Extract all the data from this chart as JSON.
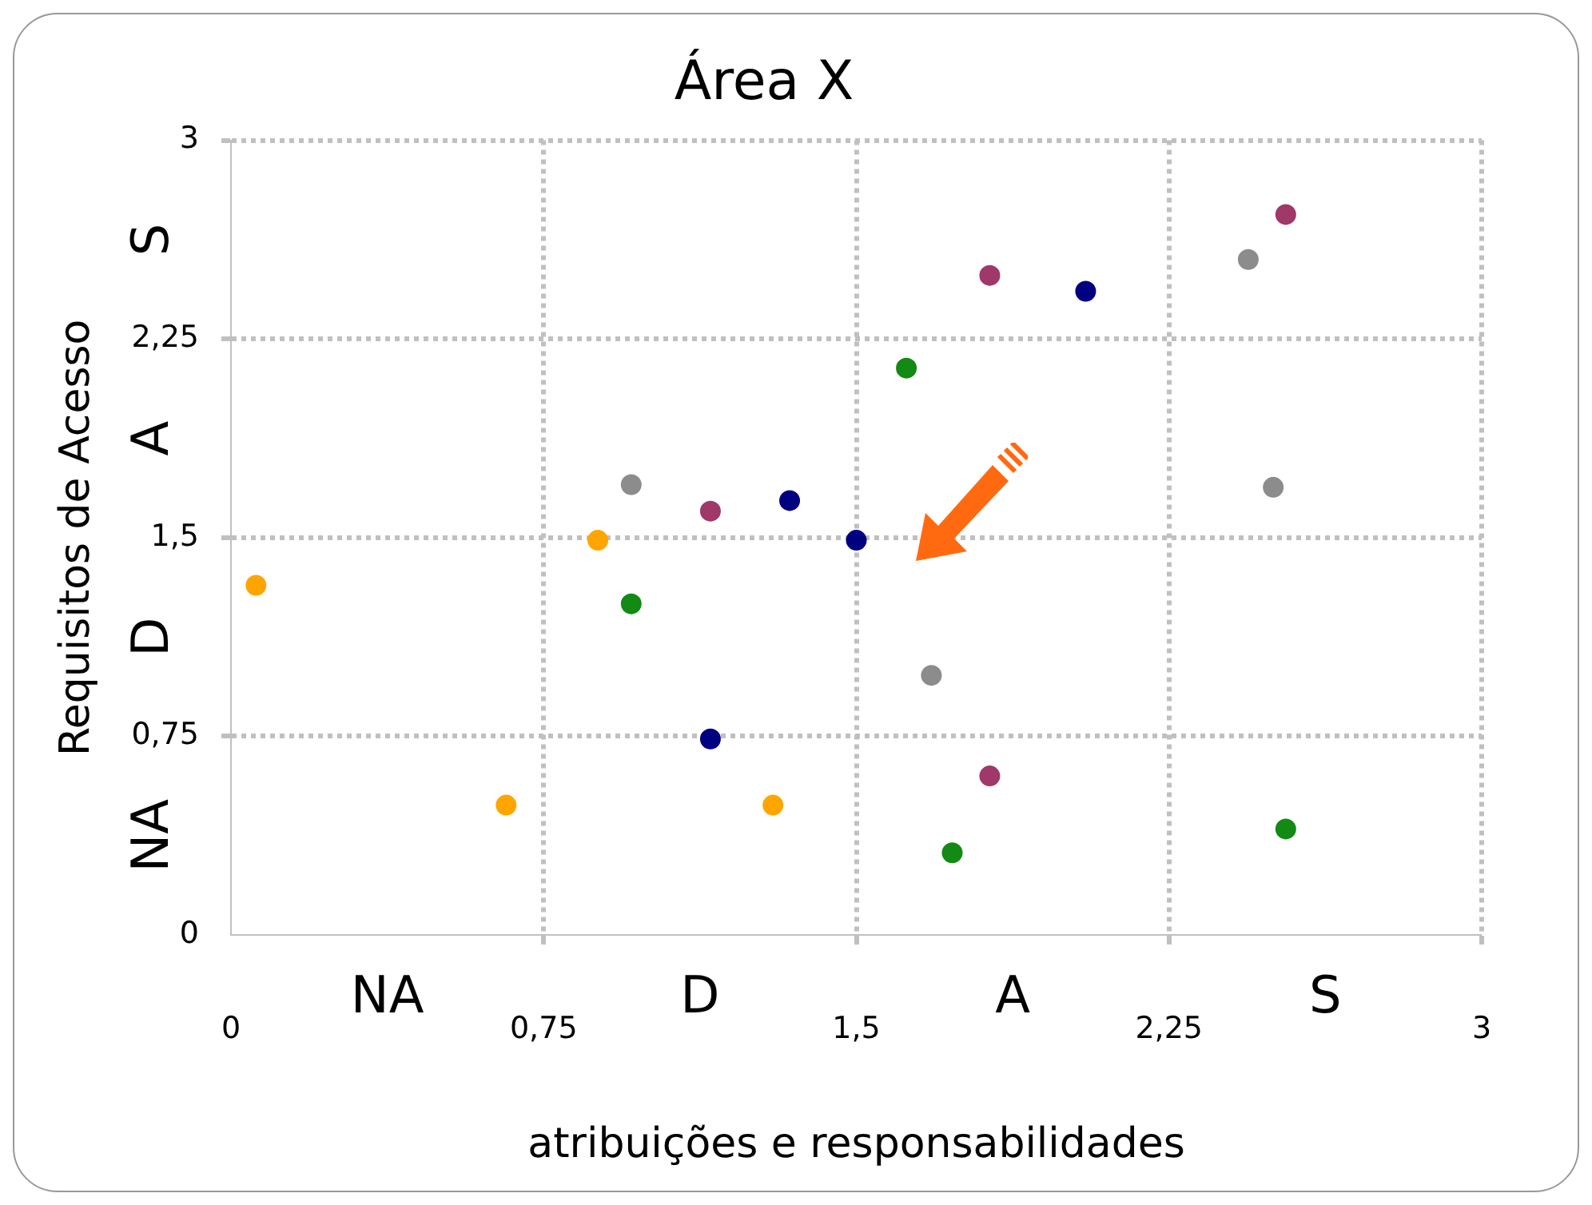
{
  "chart_data": {
    "type": "scatter",
    "title": "Área X",
    "xlabel": "atribuições e responsabilidades",
    "ylabel": "Requisitos de Acesso",
    "xlim": [
      0,
      3
    ],
    "ylim": [
      0,
      3
    ],
    "xticks": [
      0,
      {
        "value": 0.75,
        "label": "0,75"
      },
      {
        "value": 1.5,
        "label": "1,5"
      },
      {
        "value": 2.25,
        "label": "2,25"
      },
      3
    ],
    "yticks": [
      0,
      {
        "value": 0.75,
        "label": "0,75"
      },
      {
        "value": 1.5,
        "label": "1,5"
      },
      {
        "value": 2.25,
        "label": "2,25"
      },
      3
    ],
    "grid": true,
    "line_style": "dotted",
    "legend": false,
    "marker": "circle",
    "annotations": [
      "NA",
      "D",
      "A",
      "S",
      "NA",
      "D",
      "A",
      "S"
    ],
    "series": [
      {
        "color": "#ffa500",
        "x": [
          0.06,
          0.66,
          0.88,
          1.3
        ],
        "values": [
          1.32,
          0.49,
          1.49,
          0.49
        ]
      },
      {
        "color": "#8c8c8c",
        "x": [
          0.96,
          1.68,
          2.44,
          2.5
        ],
        "values": [
          1.7,
          0.98,
          2.55,
          1.69
        ]
      },
      {
        "color": "#138a13",
        "x": [
          0.96,
          1.62,
          1.73,
          2.53
        ],
        "values": [
          1.25,
          2.14,
          0.31,
          0.4
        ]
      },
      {
        "color": "#a0386a",
        "x": [
          1.15,
          1.82,
          1.82,
          2.53
        ],
        "values": [
          1.6,
          2.49,
          0.6,
          2.72
        ]
      },
      {
        "color": "#000080",
        "x": [
          1.15,
          1.34,
          1.5,
          2.05
        ],
        "values": [
          0.74,
          1.64,
          1.49,
          2.43
        ]
      }
    ]
  }
}
